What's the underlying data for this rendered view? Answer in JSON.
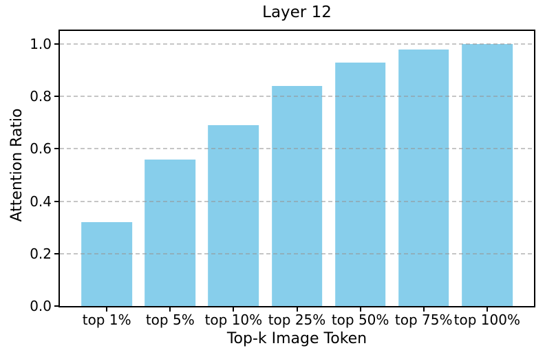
{
  "chart_data": {
    "type": "bar",
    "title": "Layer 12",
    "xlabel": "Top-k Image Token",
    "ylabel": "Attention Ratio",
    "categories": [
      "top 1%",
      "top 5%",
      "top 10%",
      "top 25%",
      "top 50%",
      "top 75%",
      "top 100%"
    ],
    "values": [
      0.32,
      0.56,
      0.69,
      0.84,
      0.93,
      0.98,
      1.0
    ],
    "ytick_values": [
      0.0,
      0.2,
      0.4,
      0.6,
      0.8,
      1.0
    ],
    "ytick_labels": [
      "0.0",
      "0.2",
      "0.4",
      "0.6",
      "0.8",
      "1.0"
    ],
    "ylim": [
      0,
      1.05
    ],
    "xlim": [
      -0.74,
      6.74
    ],
    "bar_width": 0.8,
    "bar_color": "#87CEEB",
    "grid": {
      "axis": "y",
      "style": "dashed",
      "color": "#969696",
      "opacity": 0.55,
      "over_bars": true
    },
    "legend": "none",
    "spine_color": "#000000"
  }
}
